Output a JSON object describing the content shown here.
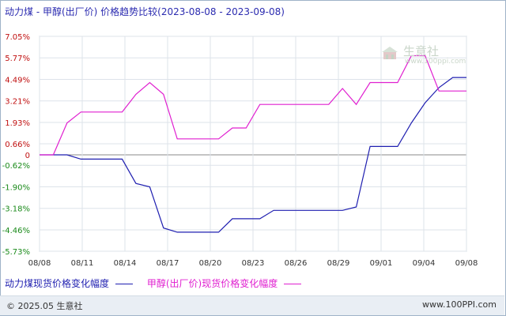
{
  "title": "动力煤 - 甲醇(出厂价) 价格趋势比较(2023-08-08 - 2023-09-08)",
  "watermark": {
    "name": "生意社",
    "url": "www.100ppi.com"
  },
  "footer": {
    "copyright": "© 2025.05 生意社",
    "site": "www.100PPI.com"
  },
  "legend": [
    {
      "label": "动力煤现货价格变化幅度",
      "color": "#1f1fb0"
    },
    {
      "label": "甲醇(出厂价)现货价格变化幅度",
      "color": "#e020d0"
    }
  ],
  "chart_data": {
    "type": "line",
    "title": "动力煤 - 甲醇(出厂价) 价格趋势比较(2023-08-08 - 2023-09-08)",
    "xlabel": "",
    "ylabel": "",
    "x_tick_labels": [
      "08/08",
      "08/11",
      "08/14",
      "08/17",
      "08/20",
      "08/23",
      "08/26",
      "08/29",
      "09/01",
      "09/04",
      "09/08"
    ],
    "y_tick_labels": [
      "7.05%",
      "5.77%",
      "4.49%",
      "3.21%",
      "1.93%",
      "0.66%",
      "0",
      "-0.62%",
      "-1.90%",
      "-3.18%",
      "-4.46%",
      "-5.73%"
    ],
    "y_tick_values": [
      7.05,
      5.77,
      4.49,
      3.21,
      1.93,
      0.66,
      0,
      -0.62,
      -1.9,
      -3.18,
      -4.46,
      -5.73
    ],
    "ylim": [
      -5.73,
      7.05
    ],
    "grid": true,
    "legend_position": "bottom",
    "x": [
      "08/08",
      "08/09",
      "08/10",
      "08/11",
      "08/12",
      "08/13",
      "08/14",
      "08/15",
      "08/16",
      "08/17",
      "08/18",
      "08/19",
      "08/20",
      "08/21",
      "08/22",
      "08/23",
      "08/24",
      "08/25",
      "08/26",
      "08/27",
      "08/28",
      "08/29",
      "08/30",
      "08/31",
      "09/01",
      "09/02",
      "09/03",
      "09/04",
      "09/05",
      "09/06",
      "09/07",
      "09/08"
    ],
    "series": [
      {
        "name": "动力煤现货价格变化幅度",
        "color": "#1f1fb0",
        "values": [
          0,
          0,
          0,
          -0.25,
          -0.25,
          -0.25,
          -0.25,
          -1.7,
          -1.9,
          -4.35,
          -4.6,
          -4.6,
          -4.6,
          -4.6,
          -3.8,
          -3.8,
          -3.8,
          -3.3,
          -3.3,
          -3.3,
          -3.3,
          -3.3,
          -3.3,
          -3.1,
          0.5,
          0.5,
          0.5,
          1.9,
          3.1,
          4.0,
          4.6,
          4.6
        ]
      },
      {
        "name": "甲醇(出厂价)现货价格变化幅度",
        "color": "#e020d0",
        "values": [
          0,
          0,
          1.9,
          2.55,
          2.55,
          2.55,
          2.55,
          3.6,
          4.3,
          3.6,
          0.95,
          0.95,
          0.95,
          0.95,
          1.6,
          1.6,
          3.0,
          3.0,
          3.0,
          3.0,
          3.0,
          3.0,
          3.95,
          3.0,
          4.3,
          4.3,
          4.3,
          5.9,
          5.9,
          3.8,
          3.8,
          3.8
        ]
      }
    ]
  }
}
